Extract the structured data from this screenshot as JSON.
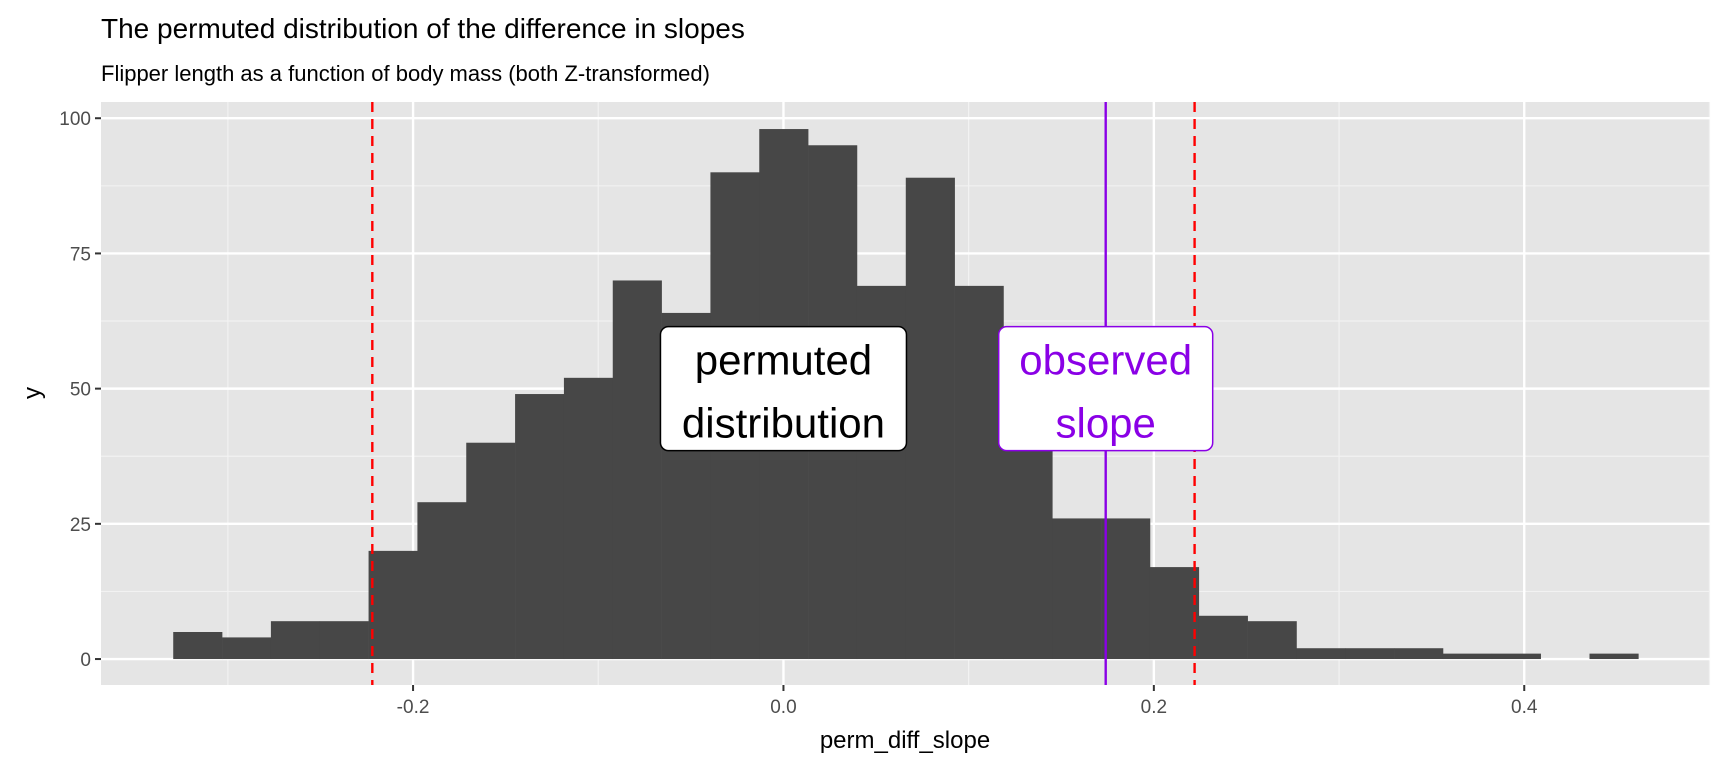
{
  "chart_data": {
    "type": "bar",
    "title": "The permuted distribution of the difference in slopes",
    "subtitle": "Flipper length as a function of body mass (both Z-transformed)",
    "xlabel": "perm_diff_slope",
    "ylabel": "y",
    "xlim": [
      -0.3685,
      0.5003
    ],
    "ylim": [
      -4.8,
      103
    ],
    "grid": true,
    "x_ticks": [
      -0.2,
      0.0,
      0.2,
      0.4
    ],
    "x_tick_labels": [
      "-0.2",
      "0.0",
      "0.2",
      "0.4"
    ],
    "y_ticks": [
      0,
      25,
      50,
      75,
      100
    ],
    "y_tick_labels": [
      "0",
      "25",
      "50",
      "75",
      "100"
    ],
    "bin_start": -0.3295,
    "bin_width": 0.02637,
    "values": [
      5,
      4,
      7,
      7,
      20,
      29,
      40,
      49,
      52,
      70,
      64,
      90,
      98,
      95,
      69,
      89,
      69,
      50,
      26,
      26,
      17,
      8,
      7,
      2,
      2,
      2,
      1,
      1,
      0,
      1
    ],
    "bar_color": "#474747",
    "panel_color": "#e5e5e5",
    "reference_lines": [
      {
        "x": -0.222,
        "style": "dashed",
        "color": "#ff0000"
      },
      {
        "x": 0.222,
        "style": "dashed",
        "color": "#ff0000"
      },
      {
        "x": 0.174,
        "style": "solid",
        "color": "#8a00e6"
      }
    ],
    "annotations": [
      {
        "lines": [
          "permuted",
          "distribution"
        ],
        "x": 0.0,
        "y": 50,
        "color": "#000000"
      },
      {
        "lines": [
          "observed",
          "slope"
        ],
        "x": 0.174,
        "y": 50,
        "color": "#8a00e6"
      }
    ]
  }
}
